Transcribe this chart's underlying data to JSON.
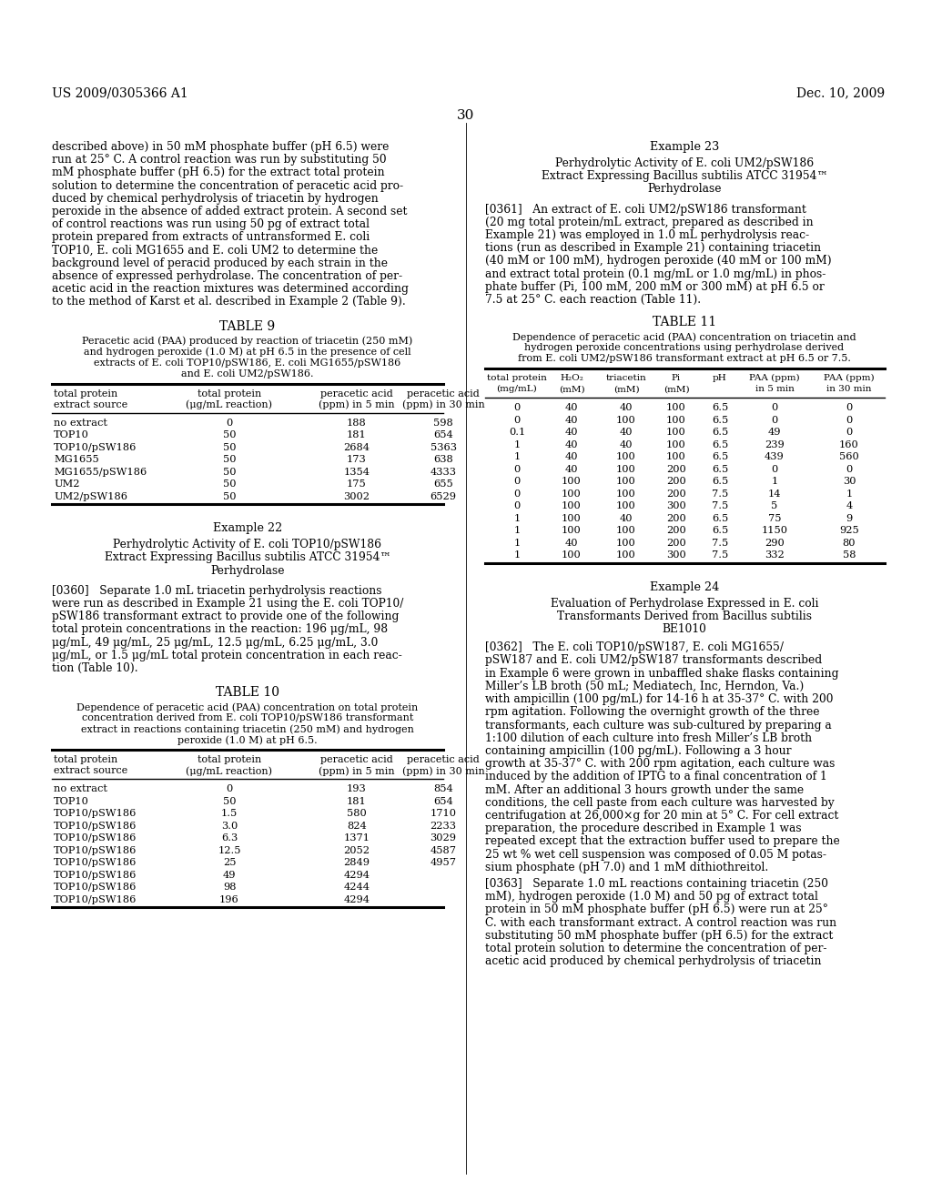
{
  "page_number": "30",
  "patent_number": "US 2009/0305366 A1",
  "patent_date": "Dec. 10, 2009",
  "background_color": "#ffffff",
  "table9_title": "TABLE 9",
  "table9_caption_lines": [
    "Peracetic acid (PAA) produced by reaction of triacetin (250 mM)",
    "and hydrogen peroxide (1.0 M) at pH 6.5 in the presence of cell",
    "extracts of E. coli TOP10/pSW186, E. coli MG1655/pSW186",
    "and E. coli UM2/pSW186."
  ],
  "table9_data": [
    [
      "no extract",
      "0",
      "188",
      "598"
    ],
    [
      "TOP10",
      "50",
      "181",
      "654"
    ],
    [
      "TOP10/pSW186",
      "50",
      "2684",
      "5363"
    ],
    [
      "MG1655",
      "50",
      "173",
      "638"
    ],
    [
      "MG1655/pSW186",
      "50",
      "1354",
      "4333"
    ],
    [
      "UM2",
      "50",
      "175",
      "655"
    ],
    [
      "UM2/pSW186",
      "50",
      "3002",
      "6529"
    ]
  ],
  "table10_title": "TABLE 10",
  "table10_caption_lines": [
    "Dependence of peracetic acid (PAA) concentration on total protein",
    "concentration derived from E. coli TOP10/pSW186 transformant",
    "extract in reactions containing triacetin (250 mM) and hydrogen",
    "peroxide (1.0 M) at pH 6.5."
  ],
  "table10_data": [
    [
      "no extract",
      "0",
      "193",
      "854"
    ],
    [
      "TOP10",
      "50",
      "181",
      "654"
    ],
    [
      "TOP10/pSW186",
      "1.5",
      "580",
      "1710"
    ],
    [
      "TOP10/pSW186",
      "3.0",
      "824",
      "2233"
    ],
    [
      "TOP10/pSW186",
      "6.3",
      "1371",
      "3029"
    ],
    [
      "TOP10/pSW186",
      "12.5",
      "2052",
      "4587"
    ],
    [
      "TOP10/pSW186",
      "25",
      "2849",
      "4957"
    ],
    [
      "TOP10/pSW186",
      "49",
      "4294",
      ""
    ],
    [
      "TOP10/pSW186",
      "98",
      "4244",
      ""
    ],
    [
      "TOP10/pSW186",
      "196",
      "4294",
      ""
    ]
  ],
  "table11_title": "TABLE 11",
  "table11_caption_lines": [
    "Dependence of peracetic acid (PAA) concentration on triacetin and",
    "hydrogen peroxide concentrations using perhydrolase derived",
    "from E. coli UM2/pSW186 transformant extract at pH 6.5 or 7.5."
  ],
  "table11_data": [
    [
      "0",
      "40",
      "40",
      "100",
      "6.5",
      "0",
      "0"
    ],
    [
      "0",
      "40",
      "100",
      "100",
      "6.5",
      "0",
      "0"
    ],
    [
      "0.1",
      "40",
      "40",
      "100",
      "6.5",
      "49",
      "0"
    ],
    [
      "1",
      "40",
      "40",
      "100",
      "6.5",
      "239",
      "160"
    ],
    [
      "1",
      "40",
      "100",
      "100",
      "6.5",
      "439",
      "560"
    ],
    [
      "0",
      "40",
      "100",
      "200",
      "6.5",
      "0",
      "0"
    ],
    [
      "0",
      "100",
      "100",
      "200",
      "6.5",
      "1",
      "30"
    ],
    [
      "0",
      "100",
      "100",
      "200",
      "7.5",
      "14",
      "1"
    ],
    [
      "0",
      "100",
      "100",
      "300",
      "7.5",
      "5",
      "4"
    ],
    [
      "1",
      "100",
      "40",
      "200",
      "6.5",
      "75",
      "9"
    ],
    [
      "1",
      "100",
      "100",
      "200",
      "6.5",
      "1150",
      "925"
    ],
    [
      "1",
      "40",
      "100",
      "200",
      "7.5",
      "290",
      "80"
    ],
    [
      "1",
      "100",
      "100",
      "300",
      "7.5",
      "332",
      "58"
    ]
  ],
  "left_lines": [
    "described above) in 50 mM phosphate buffer (pH 6.5) were",
    "run at 25° C. A control reaction was run by substituting 50",
    "mM phosphate buffer (pH 6.5) for the extract total protein",
    "solution to determine the concentration of peracetic acid pro-",
    "duced by chemical perhydrolysis of triacetin by hydrogen",
    "peroxide in the absence of added extract protein. A second set",
    "of control reactions was run using 50 pg of extract total",
    "protein prepared from extracts of untransformed E. coli",
    "TOP10, E. coli MG1655 and E. coli UM2 to determine the",
    "background level of peracid produced by each strain in the",
    "absence of expressed perhydrolase. The concentration of per-",
    "acetic acid in the reaction mixtures was determined according",
    "to the method of Karst et al. described in Example 2 (Table 9)."
  ],
  "ex22_lines": [
    "Example 22",
    "Perhydrolytic Activity of E. coli TOP10/pSW186",
    "Extract Expressing Bacillus subtilis ATCC 31954™",
    "Perhydrolase"
  ],
  "para360_lines": [
    "[0360]   Separate 1.0 mL triacetin perhydrolysis reactions",
    "were run as described in Example 21 using the E. coli TOP10/",
    "pSW186 transformant extract to provide one of the following",
    "total protein concentrations in the reaction: 196 μg/mL, 98",
    "μg/mL, 49 μg/mL, 25 μg/mL, 12.5 μg/mL, 6.25 μg/mL, 3.0",
    "μg/mL, or 1.5 μg/mL total protein concentration in each reac-",
    "tion (Table 10)."
  ],
  "ex23_lines": [
    "Example 23",
    "Perhydrolytic Activity of E. coli UM2/pSW186",
    "Extract Expressing Bacillus subtilis ATCC 31954™",
    "Perhydrolase"
  ],
  "para361_lines": [
    "[0361]   An extract of E. coli UM2/pSW186 transformant",
    "(20 mg total protein/mL extract, prepared as described in",
    "Example 21) was employed in 1.0 mL perhydrolysis reac-",
    "tions (run as described in Example 21) containing triacetin",
    "(40 mM or 100 mM), hydrogen peroxide (40 mM or 100 mM)",
    "and extract total protein (0.1 mg/mL or 1.0 mg/mL) in phos-",
    "phate buffer (Pi, 100 mM, 200 mM or 300 mM) at pH 6.5 or",
    "7.5 at 25° C. each reaction (Table 11)."
  ],
  "ex24_lines": [
    "Example 24",
    "Evaluation of Perhydrolase Expressed in E. coli",
    "Transformants Derived from Bacillus subtilis",
    "BE1010"
  ],
  "para362_lines": [
    "[0362]   The E. coli TOP10/pSW187, E. coli MG1655/",
    "pSW187 and E. coli UM2/pSW187 transformants described",
    "in Example 6 were grown in unbaffled shake flasks containing",
    "Miller’s LB broth (50 mL; Mediatech, Inc, Herndon, Va.)",
    "with ampicillin (100 pg/mL) for 14-16 h at 35-37° C. with 200",
    "rpm agitation. Following the overnight growth of the three",
    "transformants, each culture was sub-cultured by preparing a",
    "1:100 dilution of each culture into fresh Miller’s LB broth",
    "containing ampicillin (100 pg/mL). Following a 3 hour",
    "growth at 35-37° C. with 200 rpm agitation, each culture was",
    "induced by the addition of IPTG to a final concentration of 1",
    "mM. After an additional 3 hours growth under the same",
    "conditions, the cell paste from each culture was harvested by",
    "centrifugation at 26,000×g for 20 min at 5° C. For cell extract",
    "preparation, the procedure described in Example 1 was",
    "repeated except that the extraction buffer used to prepare the",
    "25 wt % wet cell suspension was composed of 0.05 M potas-",
    "sium phosphate (pH 7.0) and 1 mM dithiothreitol."
  ],
  "para363_lines": [
    "[0363]   Separate 1.0 mL reactions containing triacetin (250",
    "mM), hydrogen peroxide (1.0 M) and 50 pg of extract total",
    "protein in 50 mM phosphate buffer (pH 6.5) were run at 25°",
    "C. with each transformant extract. A control reaction was run",
    "substituting 50 mM phosphate buffer (pH 6.5) for the extract",
    "total protein solution to determine the concentration of per-",
    "acetic acid produced by chemical perhydrolysis of triacetin"
  ]
}
